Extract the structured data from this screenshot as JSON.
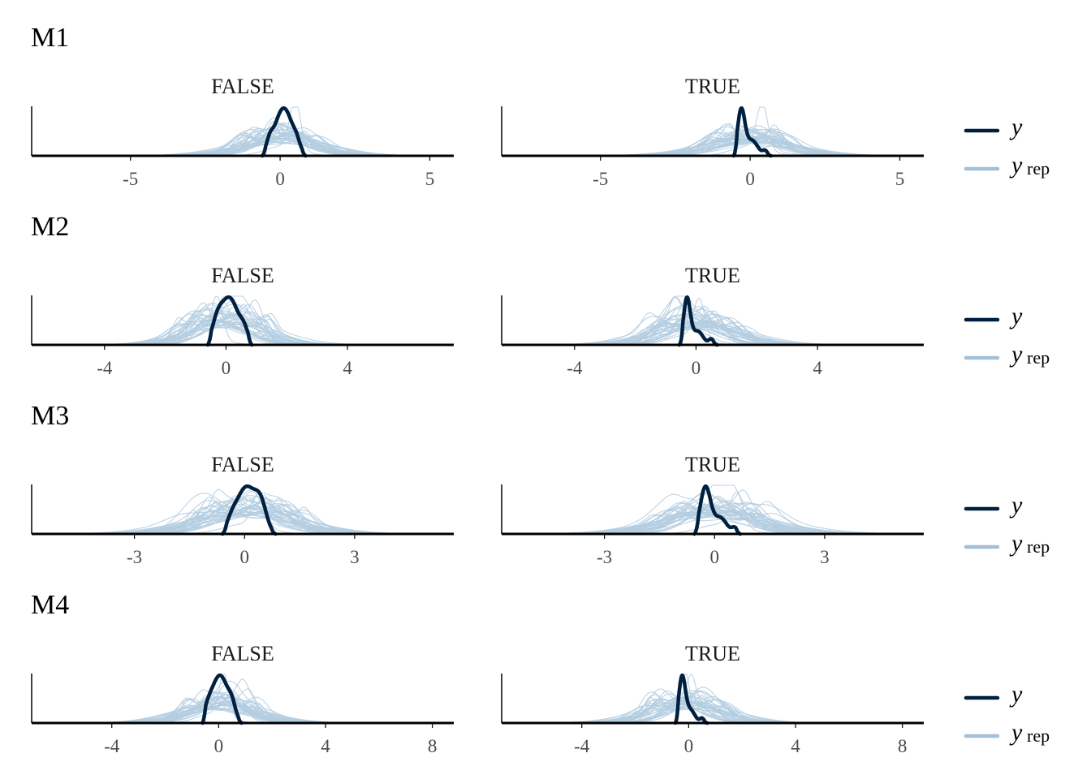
{
  "colors": {
    "y_line": "#011f3f",
    "yrep_line": "#b3cde0",
    "legend_yrep": "#a4c0d8",
    "axis": "#000000",
    "text": "#1a1a1a",
    "tick_text": "#4d4d4d"
  },
  "legend": {
    "y_label": "y",
    "yrep_label": "y",
    "yrep_sub": "rep"
  },
  "chart_data": [
    {
      "type": "area",
      "title": "M1",
      "panels": [
        {
          "label": "FALSE",
          "xlim": [
            -8.3,
            5.8
          ],
          "ticks": [
            -5,
            0,
            5
          ],
          "tick_labels": [
            "-5",
            "0",
            "5"
          ],
          "y": {
            "modes": [
              [
                0.12,
                0.3,
                1.0
              ],
              [
                -0.35,
                0.1,
                0.18
              ],
              [
                0.55,
                0.1,
                0.12
              ]
            ],
            "range": [
              -0.6,
              0.85
            ]
          },
          "yrep": {
            "n": 36,
            "amp": 0.42,
            "spread_min": 0.8,
            "spread_max": 1.6,
            "center_jitter": 0.35,
            "peak_max": 1.0,
            "peak_center": 0.5
          }
        },
        {
          "label": "TRUE",
          "xlim": [
            -8.3,
            5.8
          ],
          "ticks": [
            -5,
            0,
            5
          ],
          "tick_labels": [
            "-5",
            "0",
            "5"
          ],
          "y": {
            "modes": [
              [
                -0.3,
                0.12,
                1.0
              ],
              [
                0.05,
                0.2,
                0.35
              ],
              [
                0.5,
                0.08,
                0.1
              ]
            ],
            "range": [
              -0.55,
              0.7
            ]
          },
          "yrep": {
            "n": 36,
            "amp": 0.4,
            "spread_min": 0.9,
            "spread_max": 1.7,
            "center_jitter": 0.45,
            "peak_max": 0.95,
            "peak_center": 0.4
          }
        }
      ]
    },
    {
      "type": "area",
      "title": "M2",
      "panels": [
        {
          "label": "FALSE",
          "xlim": [
            -6.4,
            7.5
          ],
          "ticks": [
            -4,
            0,
            4
          ],
          "tick_labels": [
            "-4",
            "0",
            "4"
          ],
          "y": {
            "modes": [
              [
                0.1,
                0.32,
                1.0
              ],
              [
                -0.3,
                0.15,
                0.25
              ],
              [
                0.6,
                0.12,
                0.18
              ]
            ],
            "range": [
              -0.6,
              0.85
            ]
          },
          "yrep": {
            "n": 36,
            "amp": 0.6,
            "spread_min": 0.6,
            "spread_max": 1.4,
            "center_jitter": 0.4,
            "peak_max": 0.85,
            "peak_center": -0.3
          }
        },
        {
          "label": "TRUE",
          "xlim": [
            -6.4,
            7.5
          ],
          "ticks": [
            -4,
            0,
            4
          ],
          "tick_labels": [
            "-4",
            "0",
            "4"
          ],
          "y": {
            "modes": [
              [
                -0.3,
                0.11,
                1.0
              ],
              [
                0.05,
                0.18,
                0.3
              ],
              [
                0.5,
                0.08,
                0.12
              ]
            ],
            "range": [
              -0.55,
              0.7
            ]
          },
          "yrep": {
            "n": 36,
            "amp": 0.55,
            "spread_min": 0.7,
            "spread_max": 1.5,
            "center_jitter": 0.45,
            "peak_max": 0.8,
            "peak_center": 0.1
          }
        }
      ]
    },
    {
      "type": "area",
      "title": "M3",
      "panels": [
        {
          "label": "FALSE",
          "xlim": [
            -5.8,
            5.7
          ],
          "ticks": [
            -3,
            0,
            3
          ],
          "tick_labels": [
            "-3",
            "0",
            "3"
          ],
          "y": {
            "modes": [
              [
                0.05,
                0.28,
                1.0
              ],
              [
                0.45,
                0.15,
                0.45
              ],
              [
                -0.35,
                0.12,
                0.15
              ]
            ],
            "range": [
              -0.6,
              0.85
            ]
          },
          "yrep": {
            "n": 36,
            "amp": 0.55,
            "spread_min": 0.7,
            "spread_max": 1.5,
            "center_jitter": 0.45,
            "peak_max": 0.7,
            "peak_center": 0.4
          }
        },
        {
          "label": "TRUE",
          "xlim": [
            -5.8,
            5.7
          ],
          "ticks": [
            -3,
            0,
            3
          ],
          "tick_labels": [
            "-3",
            "0",
            "3"
          ],
          "y": {
            "modes": [
              [
                -0.25,
                0.14,
                1.0
              ],
              [
                0.15,
                0.18,
                0.35
              ],
              [
                0.55,
                0.08,
                0.12
              ]
            ],
            "range": [
              -0.55,
              0.7
            ]
          },
          "yrep": {
            "n": 36,
            "amp": 0.52,
            "spread_min": 0.8,
            "spread_max": 1.6,
            "center_jitter": 0.5,
            "peak_max": 0.7,
            "peak_center": 0.6
          }
        }
      ]
    },
    {
      "type": "area",
      "title": "M4",
      "panels": [
        {
          "label": "FALSE",
          "xlim": [
            -7.0,
            8.8
          ],
          "ticks": [
            -4,
            0,
            4,
            8
          ],
          "tick_labels": [
            "-4",
            "0",
            "4",
            "8"
          ],
          "y": {
            "modes": [
              [
                0.05,
                0.32,
                1.0
              ],
              [
                -0.4,
                0.15,
                0.15
              ],
              [
                0.5,
                0.12,
                0.2
              ]
            ],
            "range": [
              -0.6,
              0.85
            ]
          },
          "yrep": {
            "n": 36,
            "amp": 0.43,
            "spread_min": 0.8,
            "spread_max": 1.6,
            "center_jitter": 0.4,
            "peak_max": 0.85,
            "peak_center": 0.2
          }
        },
        {
          "label": "TRUE",
          "xlim": [
            -7.0,
            8.8
          ],
          "ticks": [
            -4,
            0,
            4,
            8
          ],
          "tick_labels": [
            "-4",
            "0",
            "4",
            "8"
          ],
          "y": {
            "modes": [
              [
                -0.25,
                0.12,
                1.0
              ],
              [
                0.05,
                0.18,
                0.3
              ],
              [
                0.5,
                0.08,
                0.1
              ]
            ],
            "range": [
              -0.5,
              0.7
            ]
          },
          "yrep": {
            "n": 36,
            "amp": 0.45,
            "spread_min": 0.8,
            "spread_max": 1.6,
            "center_jitter": 0.45,
            "peak_max": 0.95,
            "peak_center": -0.15
          }
        }
      ]
    }
  ]
}
